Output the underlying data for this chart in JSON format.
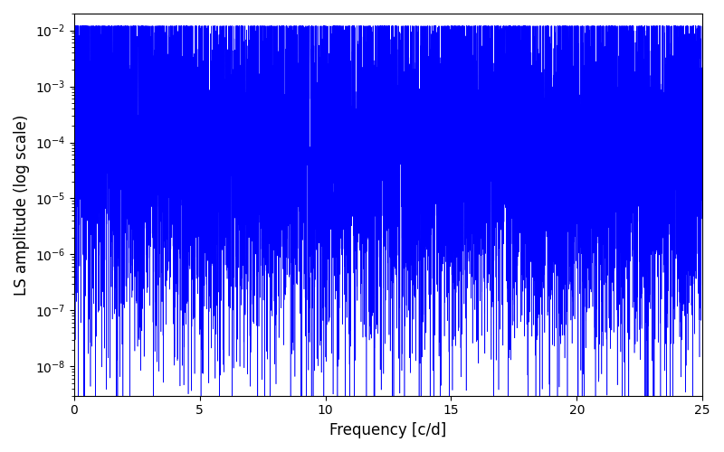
{
  "xlabel": "Frequency [c/d]",
  "ylabel": "LS amplitude (log scale)",
  "line_color": "#0000ff",
  "xlim": [
    0,
    25
  ],
  "ylim": [
    3e-09,
    0.02
  ],
  "background_color": "#ffffff",
  "seed": 7777,
  "n_points": 10000,
  "freq_max": 25.0,
  "line_width": 0.4
}
